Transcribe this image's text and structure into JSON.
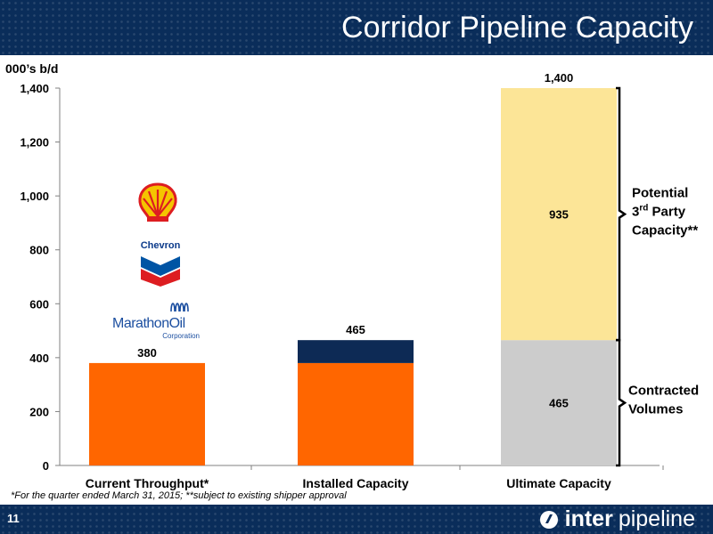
{
  "slide": {
    "title": "Corridor Pipeline Capacity",
    "number": "11",
    "footnote": "*For the quarter ended March 31, 2015; **subject to existing shipper approval",
    "brand_bold": "inter",
    "brand_light": "pipeline"
  },
  "logos": {
    "shell": {
      "icon": "shell-logo"
    },
    "chevron": {
      "text": "Chevron"
    },
    "marathon": {
      "text": "MarathonOil",
      "subtext": "Corporation"
    }
  },
  "colors": {
    "header": "#0a2d5a",
    "orange": "#ff6600",
    "navy": "#0d2a55",
    "yellow": "#fce597",
    "grey": "#cccccc"
  },
  "chart_data": {
    "type": "bar",
    "stacked": true,
    "ylabel": "000’s b/d",
    "ylim": [
      0,
      1400
    ],
    "yticks": [
      0,
      200,
      400,
      600,
      800,
      1000,
      1200,
      1400
    ],
    "ytick_labels": [
      "0",
      "200",
      "400",
      "600",
      "800",
      "1,000",
      "1,200",
      "1,400"
    ],
    "categories": [
      "Current Throughput*",
      "Installed Capacity",
      "Ultimate Capacity"
    ],
    "bars": [
      {
        "category": "Current Throughput*",
        "total_label": "380",
        "segments": [
          {
            "value": 380,
            "color": "#ff6600"
          }
        ]
      },
      {
        "category": "Installed Capacity",
        "total_label": "465",
        "segments": [
          {
            "value": 380,
            "color": "#ff6600"
          },
          {
            "value": 85,
            "color": "#0d2a55"
          }
        ]
      },
      {
        "category": "Ultimate Capacity",
        "total_label": "1,400",
        "segments": [
          {
            "value": 465,
            "color": "#cccccc",
            "label": "465"
          },
          {
            "value": 935,
            "color": "#fce597",
            "label": "935"
          }
        ]
      }
    ],
    "annotations": [
      {
        "range": [
          465,
          1400
        ],
        "lines": [
          "Potential",
          "3",
          "rd",
          " Party",
          "Capacity**"
        ]
      },
      {
        "range": [
          0,
          465
        ],
        "lines": [
          "Contracted",
          "Volumes"
        ]
      }
    ],
    "grid": false
  }
}
